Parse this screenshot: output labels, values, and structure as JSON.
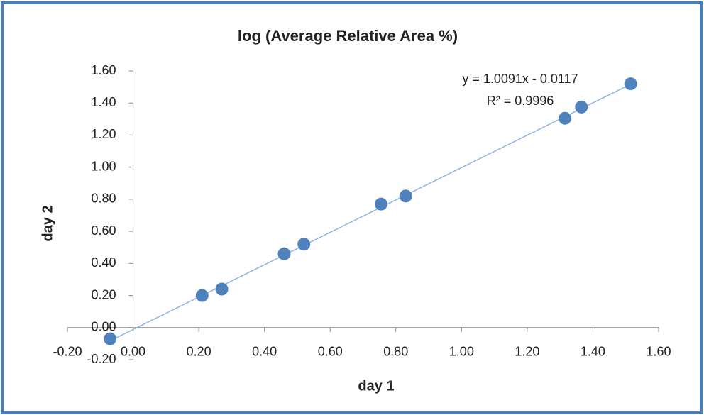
{
  "chart_data": {
    "type": "scatter",
    "title": "log (Average Relative Area %)",
    "x_label": "day 1",
    "y_label": "day 2",
    "x": [
      -0.07,
      0.21,
      0.27,
      0.46,
      0.52,
      0.755,
      0.83,
      1.315,
      1.365,
      1.515
    ],
    "values": [
      -0.07,
      0.2,
      0.24,
      0.46,
      0.52,
      0.77,
      0.82,
      1.305,
      1.375,
      1.52
    ],
    "color": "#4f81bd",
    "trendline": {
      "equation": "y = 1.0091x - 0.0117",
      "r_squared": "R² = 0.9996",
      "slope": 1.0091,
      "intercept": -0.0117,
      "color": "#8db3e2"
    },
    "xlim": [
      -0.2,
      1.6
    ],
    "xticks": [
      {
        "value": -0.2,
        "label": "-0.20"
      },
      {
        "value": 0,
        "label": "0.00"
      },
      {
        "value": 0.2,
        "label": "0.20"
      },
      {
        "value": 0.4,
        "label": "0.40"
      },
      {
        "value": 0.6,
        "label": "0.60"
      },
      {
        "value": 0.8,
        "label": "0.80"
      },
      {
        "value": 1,
        "label": "1.00"
      },
      {
        "value": 1.2,
        "label": "1.20"
      },
      {
        "value": 1.4,
        "label": "1.40"
      },
      {
        "value": 1.6,
        "label": "1.60"
      }
    ],
    "ylim": [
      -0.2,
      1.6
    ],
    "yticks": [
      {
        "value": -0.2,
        "label": "-0.20"
      },
      {
        "value": 0,
        "label": "0.00"
      },
      {
        "value": 0.2,
        "label": "0.20"
      },
      {
        "value": 0.4,
        "label": "0.40"
      },
      {
        "value": 0.6,
        "label": "0.60"
      },
      {
        "value": 0.8,
        "label": "0.80"
      },
      {
        "value": 1,
        "label": "1.00"
      },
      {
        "value": 1.2,
        "label": "1.20"
      },
      {
        "value": 1.4,
        "label": "1.40"
      },
      {
        "value": 1.6,
        "label": "1.60"
      }
    ],
    "grid": false
  }
}
